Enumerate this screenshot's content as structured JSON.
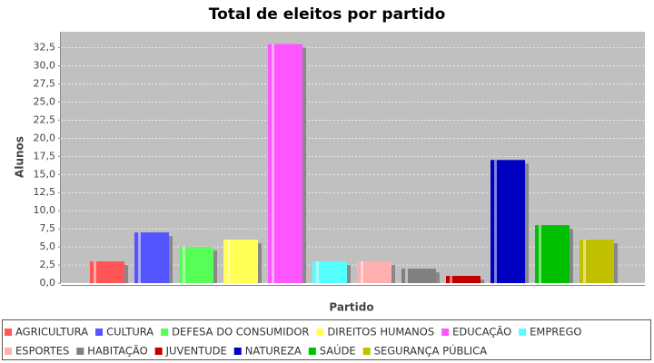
{
  "chart_data": {
    "type": "bar",
    "title": "Total de eleitos por partido",
    "x_label": "Partido",
    "y_label": "Alunos",
    "categories": [
      null
    ],
    "series": [
      {
        "name": "AGRICULTURA",
        "color": "#ff5555",
        "values": [
          3
        ]
      },
      {
        "name": "CULTURA",
        "color": "#5555ff",
        "values": [
          7
        ]
      },
      {
        "name": "DEFESA DO CONSUMIDOR",
        "color": "#55ff55",
        "values": [
          5
        ]
      },
      {
        "name": "DIREITOS HUMANOS",
        "color": "#ffff55",
        "values": [
          6
        ]
      },
      {
        "name": "EDUCAÇÃO",
        "color": "#ff55ff",
        "values": [
          33
        ]
      },
      {
        "name": "EMPREGO",
        "color": "#55ffff",
        "values": [
          3
        ]
      },
      {
        "name": "ESPORTES",
        "color": "#ffafaf",
        "values": [
          3
        ]
      },
      {
        "name": "HABITAÇÃO",
        "color": "#808080",
        "values": [
          2
        ]
      },
      {
        "name": "JUVENTUDE",
        "color": "#c00000",
        "values": [
          1
        ]
      },
      {
        "name": "NATUREZA",
        "color": "#0000c0",
        "values": [
          17
        ]
      },
      {
        "name": "SAÚDE",
        "color": "#00c000",
        "values": [
          8
        ]
      },
      {
        "name": "SEGURANÇA PÚBLICA",
        "color": "#c0c000",
        "values": [
          6
        ]
      }
    ],
    "ylim": [
      0,
      34.7
    ],
    "yticks": [
      {
        "value": 0,
        "label": "0,0"
      },
      {
        "value": 2.5,
        "label": "2,5"
      },
      {
        "value": 5,
        "label": "5,0"
      },
      {
        "value": 7.5,
        "label": "7,5"
      },
      {
        "value": 10,
        "label": "10,0"
      },
      {
        "value": 12.5,
        "label": "12,5"
      },
      {
        "value": 15,
        "label": "15,0"
      },
      {
        "value": 17.5,
        "label": "17,5"
      },
      {
        "value": 20,
        "label": "20,0"
      },
      {
        "value": 22.5,
        "label": "22,5"
      },
      {
        "value": 25,
        "label": "25,0"
      },
      {
        "value": 27.5,
        "label": "27,5"
      },
      {
        "value": 30,
        "label": "30,0"
      },
      {
        "value": 32.5,
        "label": "32,5"
      }
    ],
    "grid": true,
    "legend": "bottom"
  }
}
